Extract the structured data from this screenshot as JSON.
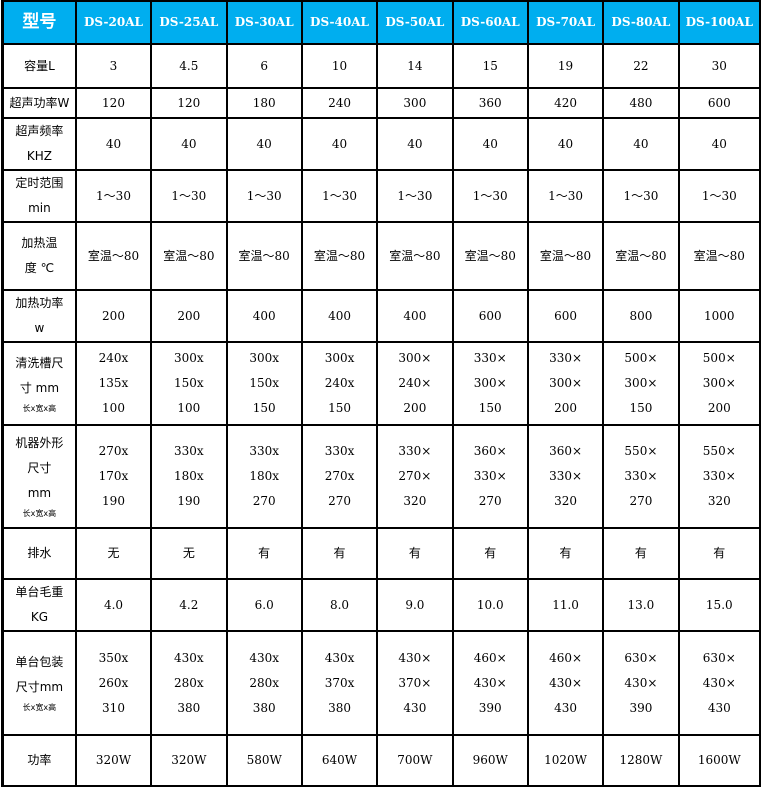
{
  "header": {
    "label": "型号",
    "models": [
      "DS-20AL",
      "DS-25AL",
      "DS-30AL",
      "DS-40AL",
      "DS-50AL",
      "DS-60AL",
      "DS-70AL",
      "DS-80AL",
      "DS-100AL"
    ]
  },
  "colors": {
    "header_bg": "#00aeef",
    "header_text": "#ffffff",
    "border": "#000000"
  },
  "rows": [
    {
      "label": [
        "容量L"
      ],
      "values": [
        [
          "3"
        ],
        [
          "4.5"
        ],
        [
          "6"
        ],
        [
          "10"
        ],
        [
          "14"
        ],
        [
          "15"
        ],
        [
          "19"
        ],
        [
          "22"
        ],
        [
          "30"
        ]
      ]
    },
    {
      "label": [
        "超声功率W"
      ],
      "values": [
        [
          "120"
        ],
        [
          "120"
        ],
        [
          "180"
        ],
        [
          "240"
        ],
        [
          "300"
        ],
        [
          "360"
        ],
        [
          "420"
        ],
        [
          "480"
        ],
        [
          "600"
        ]
      ]
    },
    {
      "label": [
        "超声频率",
        "KHZ"
      ],
      "values": [
        [
          "40"
        ],
        [
          "40"
        ],
        [
          "40"
        ],
        [
          "40"
        ],
        [
          "40"
        ],
        [
          "40"
        ],
        [
          "40"
        ],
        [
          "40"
        ],
        [
          "40"
        ]
      ]
    },
    {
      "label": [
        "定时范围",
        "min"
      ],
      "values": [
        [
          "1～30"
        ],
        [
          "1～30"
        ],
        [
          "1～30"
        ],
        [
          "1～30"
        ],
        [
          "1～30"
        ],
        [
          "1～30"
        ],
        [
          "1～30"
        ],
        [
          "1～30"
        ],
        [
          "1～30"
        ]
      ]
    },
    {
      "label": [
        "加热温",
        "度 ℃"
      ],
      "values": [
        [
          "室温～80"
        ],
        [
          "室温～80"
        ],
        [
          "室温～80"
        ],
        [
          "室温～80"
        ],
        [
          "室温～80"
        ],
        [
          "室温～80"
        ],
        [
          "室温～80"
        ],
        [
          "室温～80"
        ],
        [
          "室温～80"
        ]
      ]
    },
    {
      "label": [
        "加热功率",
        "w"
      ],
      "values": [
        [
          "200"
        ],
        [
          "200"
        ],
        [
          "400"
        ],
        [
          "400"
        ],
        [
          "400"
        ],
        [
          "600"
        ],
        [
          "600"
        ],
        [
          "800"
        ],
        [
          "1000"
        ]
      ]
    },
    {
      "label": [
        "清洗槽尺",
        "寸 mm"
      ],
      "sub": "长x宽x高",
      "values": [
        [
          "240x",
          "135x",
          "100"
        ],
        [
          "300x",
          "150x",
          "100"
        ],
        [
          "300x",
          "150x",
          "150"
        ],
        [
          "300x",
          "240x",
          "150"
        ],
        [
          "300×",
          "240×",
          "200"
        ],
        [
          "330×",
          "300×",
          "150"
        ],
        [
          "330×",
          "300×",
          "200"
        ],
        [
          "500×",
          "300×",
          "150"
        ],
        [
          "500×",
          "300×",
          "200"
        ]
      ]
    },
    {
      "label": [
        "机器外形",
        "尺寸",
        "mm"
      ],
      "sub": "长x宽x高",
      "values": [
        [
          "270x",
          "170x",
          "190"
        ],
        [
          "330x",
          "180x",
          "190"
        ],
        [
          "330x",
          "180x",
          "270"
        ],
        [
          "330x",
          "270x",
          "270"
        ],
        [
          "330×",
          "270×",
          "320"
        ],
        [
          "360×",
          "330×",
          "270"
        ],
        [
          "360×",
          "330×",
          "320"
        ],
        [
          "550×",
          "330×",
          "270"
        ],
        [
          "550×",
          "330×",
          "320"
        ]
      ]
    },
    {
      "label": [
        "排水"
      ],
      "values": [
        [
          "无"
        ],
        [
          "无"
        ],
        [
          "有"
        ],
        [
          "有"
        ],
        [
          "有"
        ],
        [
          "有"
        ],
        [
          "有"
        ],
        [
          "有"
        ],
        [
          "有"
        ]
      ]
    },
    {
      "label": [
        "单台毛重",
        "KG"
      ],
      "values": [
        [
          "4.0"
        ],
        [
          "4.2"
        ],
        [
          "6.0"
        ],
        [
          "8.0"
        ],
        [
          "9.0"
        ],
        [
          "10.0"
        ],
        [
          "11.0"
        ],
        [
          "13.0"
        ],
        [
          "15.0"
        ]
      ]
    },
    {
      "label": [
        "单台包装",
        "尺寸mm"
      ],
      "sub": "长x宽x高",
      "values": [
        [
          "350x",
          "260x",
          "310"
        ],
        [
          "430x",
          "280x",
          "380"
        ],
        [
          "430x",
          "280x",
          "380"
        ],
        [
          "430x",
          "370x",
          "380"
        ],
        [
          "430×",
          "370×",
          "430"
        ],
        [
          "460×",
          "430×",
          "390"
        ],
        [
          "460×",
          "430×",
          "430"
        ],
        [
          "630×",
          "430×",
          "390"
        ],
        [
          "630×",
          "430×",
          "430"
        ]
      ]
    },
    {
      "label": [
        "功率"
      ],
      "values": [
        [
          "320W"
        ],
        [
          "320W"
        ],
        [
          "580W"
        ],
        [
          "640W"
        ],
        [
          "700W"
        ],
        [
          "960W"
        ],
        [
          "1020W"
        ],
        [
          "1280W"
        ],
        [
          "1600W"
        ]
      ]
    }
  ]
}
